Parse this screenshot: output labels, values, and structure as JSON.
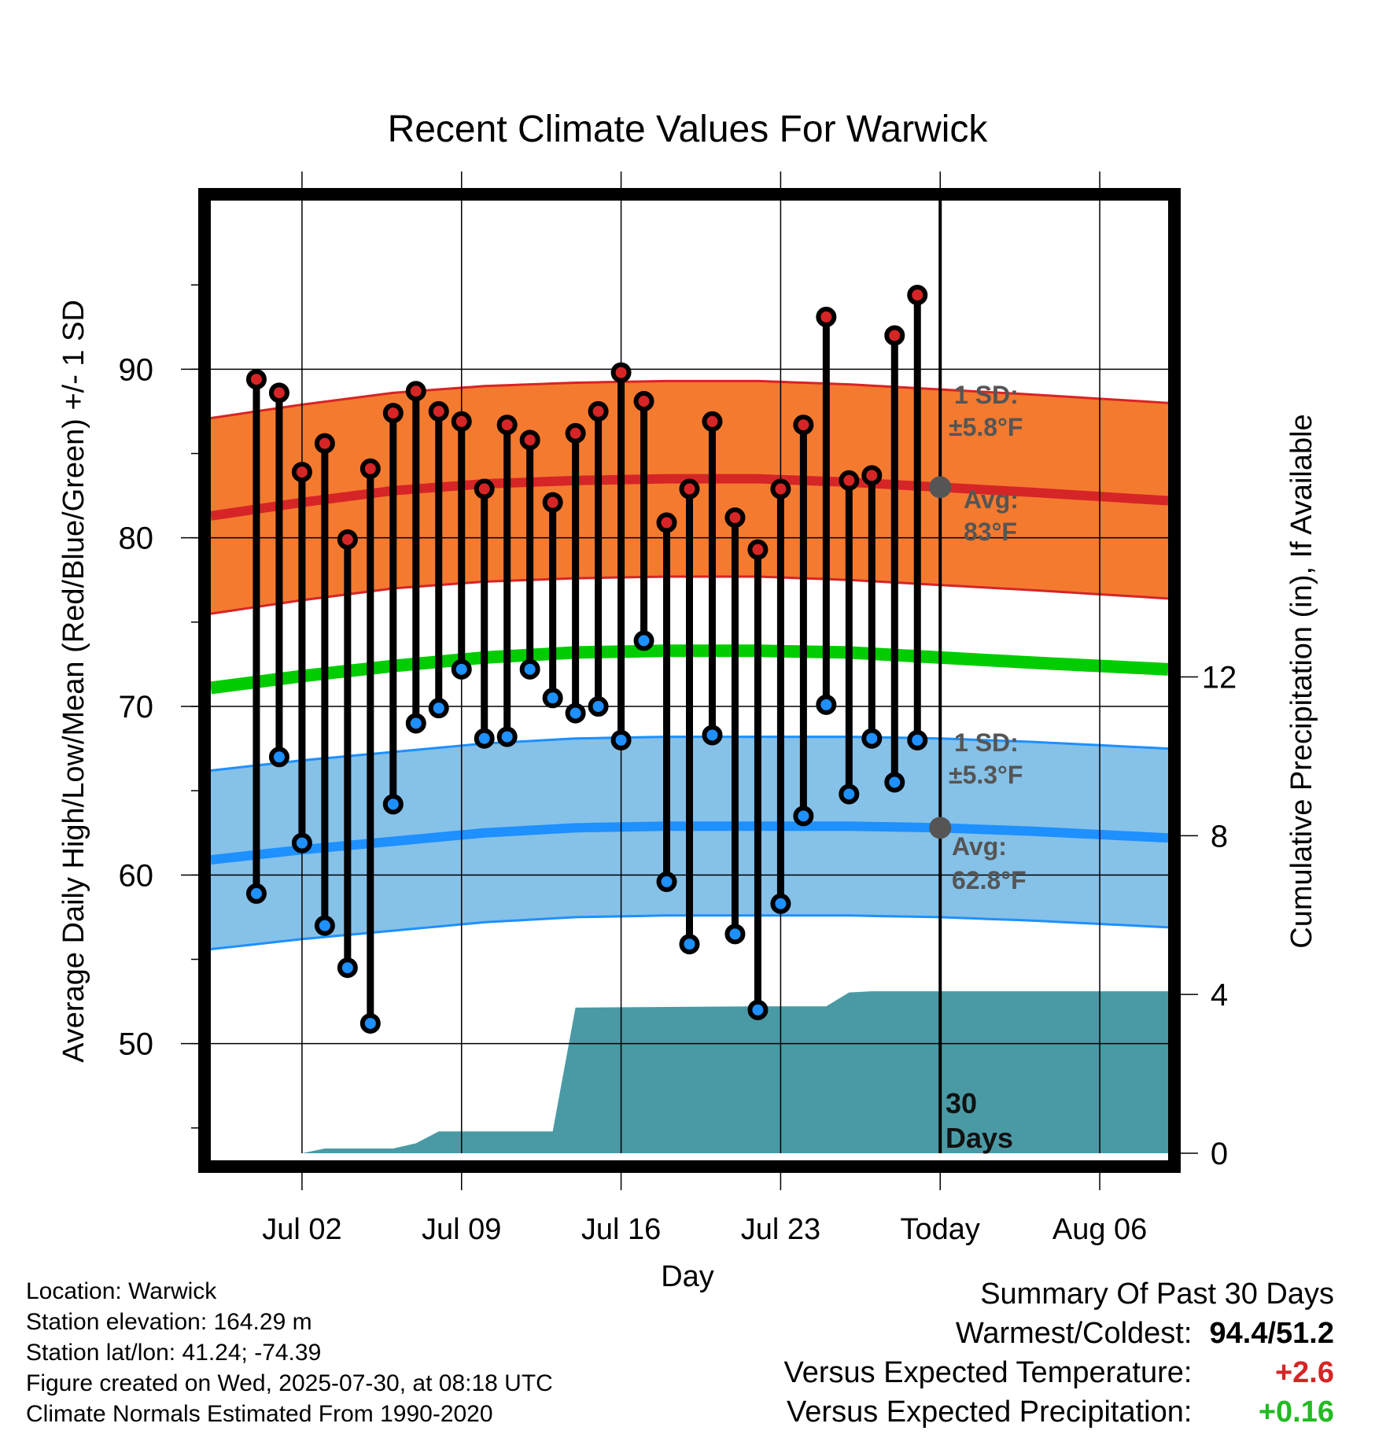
{
  "colors": {
    "high_band": "#f47a30",
    "high_line": "#d62526",
    "low_band": "#86c1e8",
    "low_line": "#1e90ff",
    "mean_line": "#00cc00",
    "precip_fill": "#4a9aa5",
    "high_marker": "#d62526",
    "low_marker": "#1e90ff",
    "today_marker": "#555555"
  },
  "chart_data": {
    "type": "line",
    "title": "Recent Climate Values For Warwick",
    "xlabel": "Day",
    "ylabel": "Average Daily High/Low/Mean (Red/Blue/Green) +/- 1 SD",
    "y2label": "Cumulative Precipitation (in), If Available",
    "ylim": [
      43.5,
      100
    ],
    "y2lim": [
      0,
      24
    ],
    "y_ticks": [
      50,
      60,
      70,
      80,
      90
    ],
    "y2_ticks": [
      0,
      4,
      8,
      12
    ],
    "xlim": [
      "2025-06-28",
      "2025-08-09"
    ],
    "x_ticks": [
      {
        "date": "2025-07-02",
        "label": "Jul 02"
      },
      {
        "date": "2025-07-09",
        "label": "Jul 09"
      },
      {
        "date": "2025-07-16",
        "label": "Jul 16"
      },
      {
        "date": "2025-07-23",
        "label": "Jul 23"
      },
      {
        "date": "2025-07-30",
        "label": "Today"
      },
      {
        "date": "2025-08-06",
        "label": "Aug 06"
      }
    ],
    "today": "2025-07-30",
    "today_label": "30 Days",
    "normals": {
      "dates": [
        "2025-06-28",
        "2025-07-02",
        "2025-07-06",
        "2025-07-10",
        "2025-07-14",
        "2025-07-18",
        "2025-07-22",
        "2025-07-26",
        "2025-07-30",
        "2025-08-03",
        "2025-08-09"
      ],
      "avg_high": [
        81.3,
        82.1,
        82.8,
        83.2,
        83.4,
        83.5,
        83.5,
        83.3,
        83.0,
        82.7,
        82.2
      ],
      "high_sd": 5.8,
      "avg_low": [
        60.9,
        61.5,
        62.0,
        62.5,
        62.8,
        62.9,
        62.9,
        62.9,
        62.8,
        62.6,
        62.2
      ],
      "low_sd": 5.3,
      "avg_mean": [
        71.1,
        71.8,
        72.4,
        72.9,
        73.2,
        73.3,
        73.3,
        73.2,
        72.9,
        72.6,
        72.2
      ]
    },
    "band_labels": {
      "high_sd": "1 SD:",
      "high_sd_value": "±5.8°F",
      "high_avg": "Avg:",
      "high_avg_value": "83°F",
      "low_sd": "1 SD:",
      "low_sd_value": "±5.3°F",
      "low_avg": "Avg:",
      "low_avg_value": "62.8°F"
    },
    "today_avg_high": 83.0,
    "today_avg_low": 62.8,
    "observations": {
      "dates": [
        "2025-06-30",
        "2025-07-01",
        "2025-07-02",
        "2025-07-03",
        "2025-07-04",
        "2025-07-05",
        "2025-07-06",
        "2025-07-07",
        "2025-07-08",
        "2025-07-09",
        "2025-07-10",
        "2025-07-11",
        "2025-07-12",
        "2025-07-13",
        "2025-07-14",
        "2025-07-15",
        "2025-07-16",
        "2025-07-17",
        "2025-07-18",
        "2025-07-19",
        "2025-07-20",
        "2025-07-21",
        "2025-07-22",
        "2025-07-23",
        "2025-07-24",
        "2025-07-25",
        "2025-07-26",
        "2025-07-27",
        "2025-07-28",
        "2025-07-29"
      ],
      "high": [
        89.4,
        88.6,
        83.9,
        85.6,
        79.9,
        84.1,
        87.4,
        88.7,
        87.5,
        86.9,
        82.9,
        86.7,
        85.8,
        82.1,
        86.2,
        87.5,
        89.8,
        88.1,
        80.9,
        82.9,
        86.9,
        81.2,
        79.3,
        82.9,
        86.7,
        93.1,
        83.4,
        83.7,
        92.0,
        94.4
      ],
      "low": [
        58.9,
        67.0,
        61.9,
        57.0,
        54.5,
        51.2,
        64.2,
        69.0,
        69.9,
        72.2,
        68.1,
        68.2,
        72.2,
        70.5,
        69.6,
        70.0,
        68.0,
        73.9,
        59.6,
        55.9,
        68.3,
        56.5,
        52.0,
        58.3,
        63.5,
        70.1,
        64.8,
        68.1,
        65.5,
        68.0
      ]
    },
    "precip": {
      "dates": [
        "2025-07-02",
        "2025-07-03",
        "2025-07-06",
        "2025-07-07",
        "2025-07-08",
        "2025-07-13",
        "2025-07-14",
        "2025-07-22",
        "2025-07-24",
        "2025-07-25",
        "2025-07-26",
        "2025-07-27",
        "2025-07-30",
        "2025-08-09"
      ],
      "cumulative": [
        0.0,
        0.12,
        0.12,
        0.25,
        0.55,
        0.55,
        3.67,
        3.7,
        3.7,
        3.7,
        4.05,
        4.08,
        4.08,
        4.08
      ]
    },
    "grid": true,
    "legend": "none"
  },
  "info": {
    "location": "Location: Warwick",
    "elevation": "Station elevation: 164.29 m",
    "latlon": "Station lat/lon: 41.24; -74.39",
    "created": "Figure created on Wed, 2025-07-30, at 08:18 UTC",
    "normals": "Climate Normals Estimated From 1990-2020"
  },
  "summary": {
    "heading": "Summary Of Past 30 Days",
    "extremes_label": "Warmest/Coldest:",
    "extremes_value": "94.4/51.2",
    "temp_label": "Versus Expected Temperature:",
    "temp_value": "+2.6",
    "temp_color": "#d62526",
    "precip_label": "Versus Expected Precipitation:",
    "precip_value": "+0.16",
    "precip_color": "#22bb22"
  }
}
